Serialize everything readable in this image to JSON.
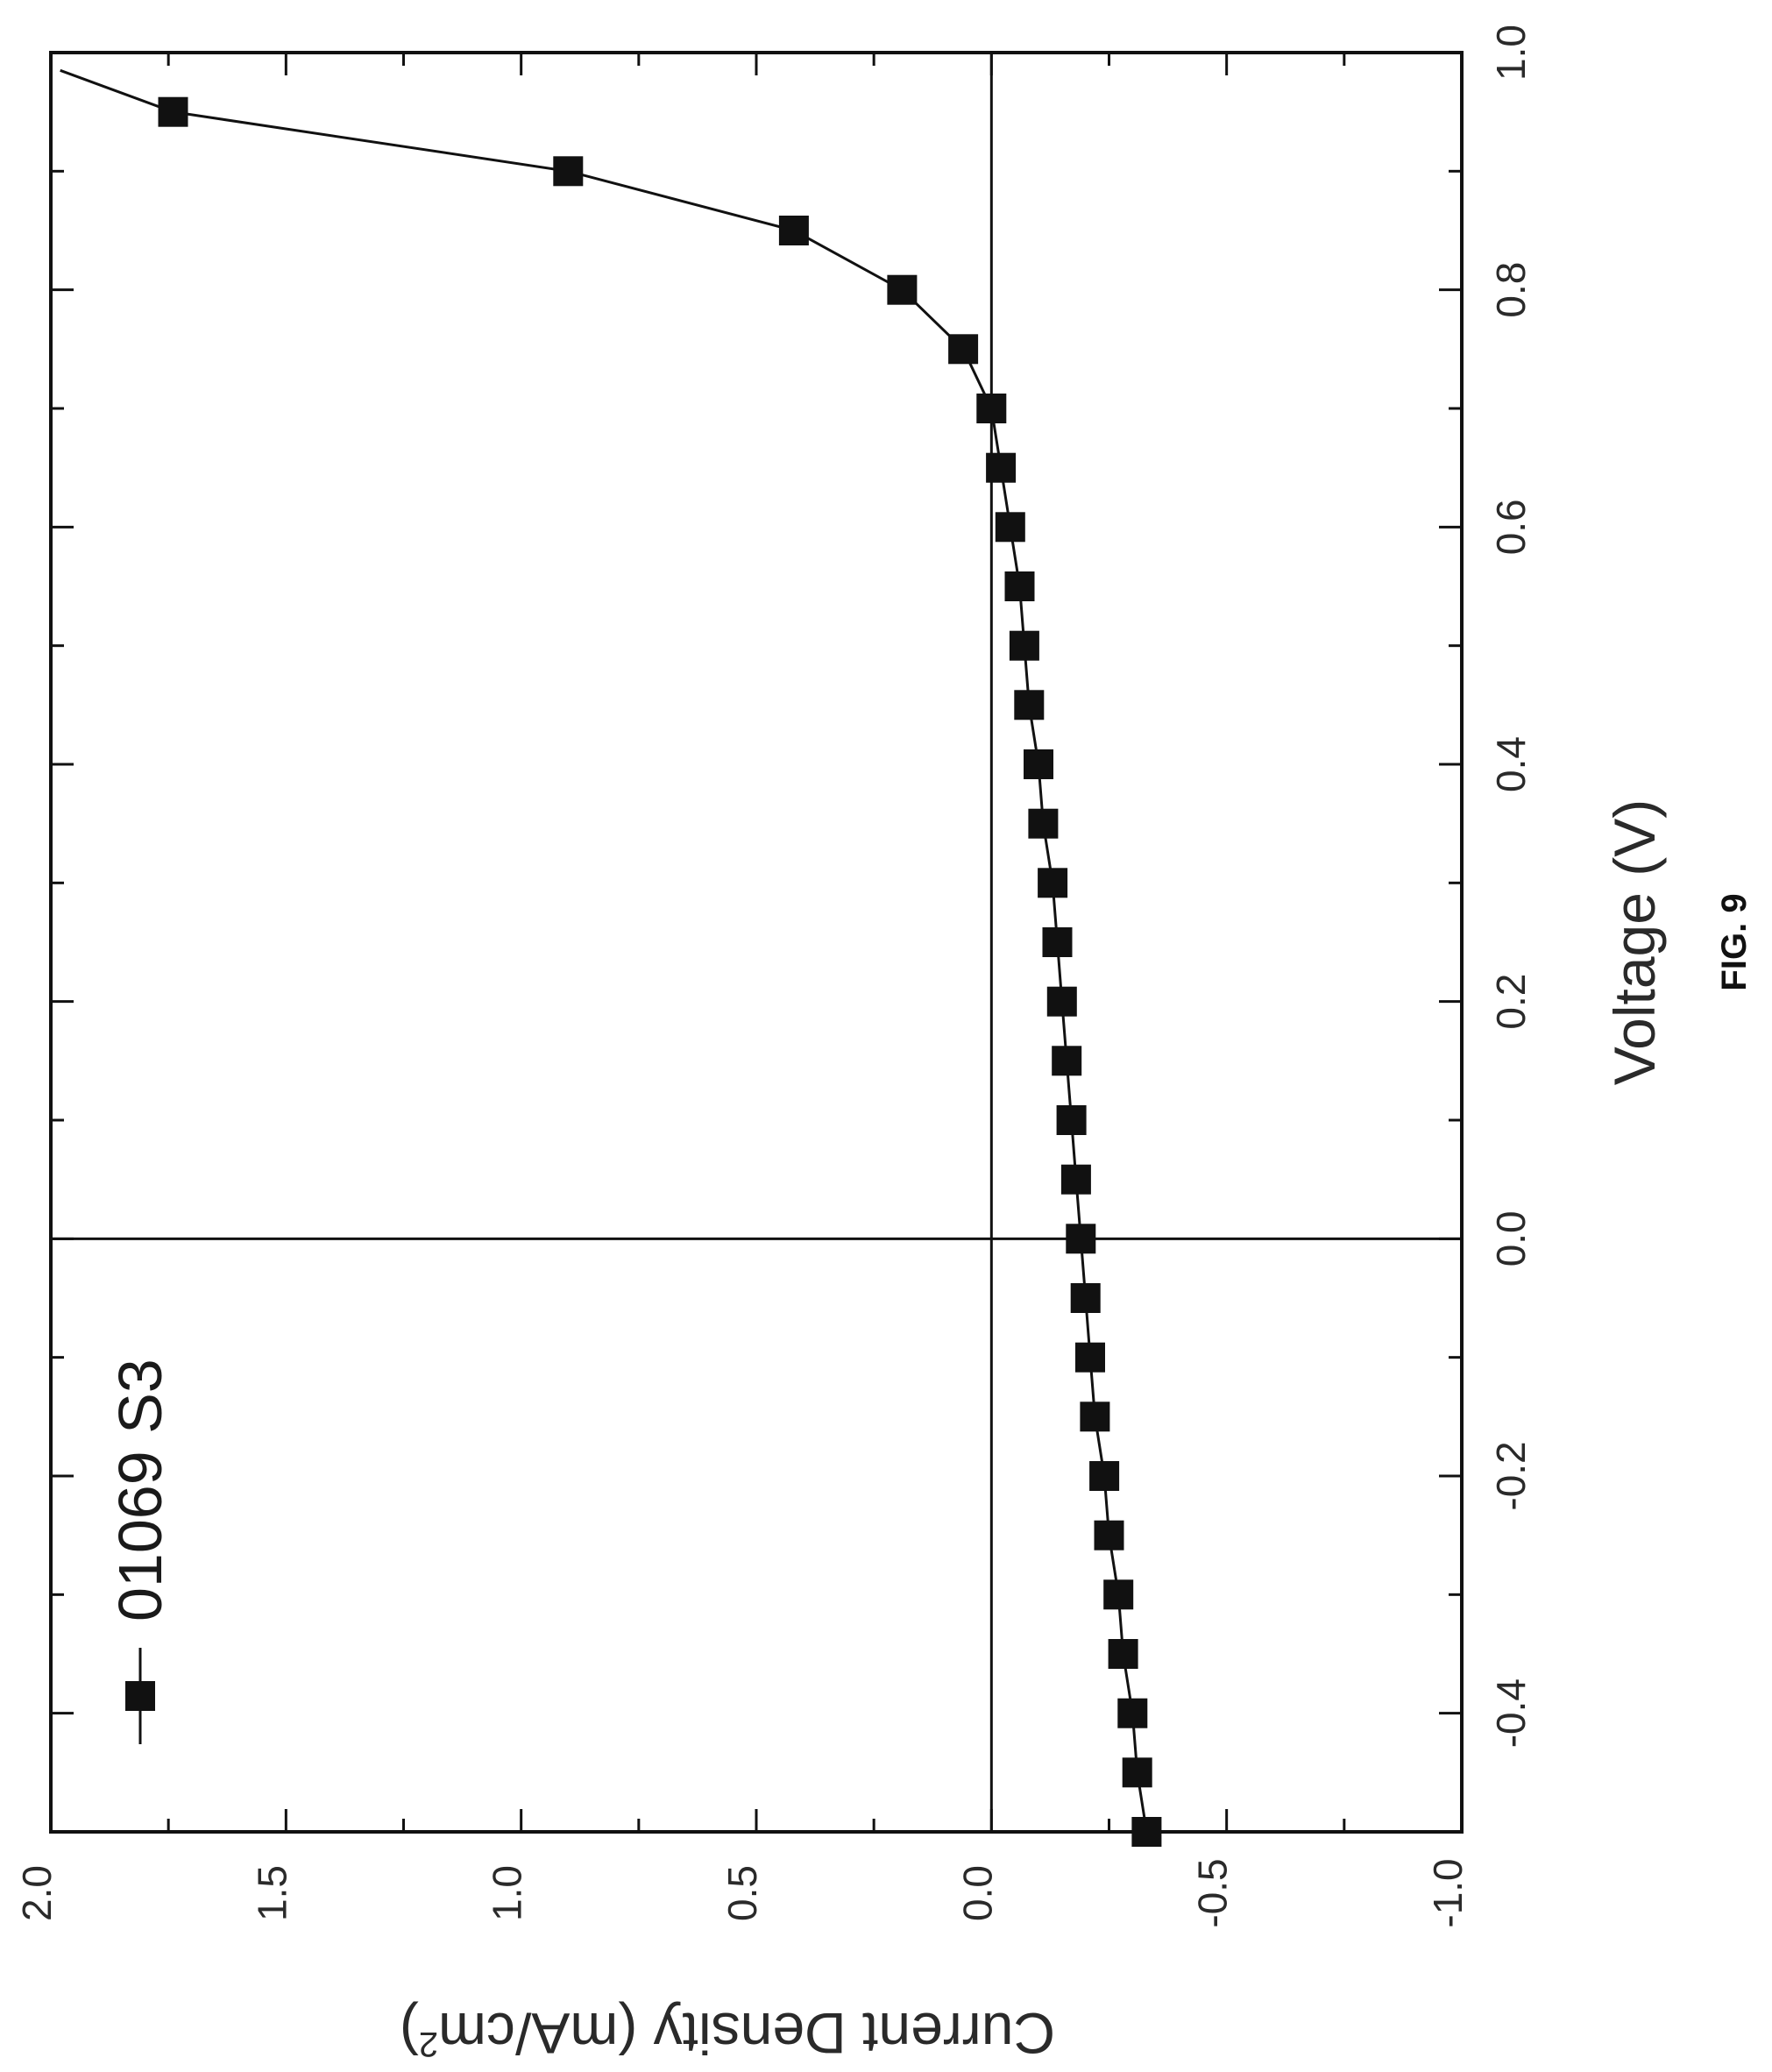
{
  "figure": {
    "caption": "FIG. 9"
  },
  "chart_data": {
    "type": "line",
    "orientation": "rotated-90-clockwise",
    "xlabel": "Voltage (V)",
    "ylabel": "Current Density (mA/cm²)",
    "xlim": [
      -0.5,
      1.0
    ],
    "ylim": [
      -1.0,
      2.0
    ],
    "x_ticks": [
      "-0.4",
      "-0.2",
      "0.0",
      "0.2",
      "0.4",
      "0.6",
      "0.8",
      "1.0"
    ],
    "y_ticks": [
      "-1.0",
      "-0.5",
      "0.0",
      "0.5",
      "1.0",
      "1.5",
      "2.0"
    ],
    "reference_lines": {
      "x": 0,
      "y": 0
    },
    "grid": false,
    "legend_position": "top-left",
    "line_color": "#111111",
    "marker": "square",
    "series": [
      {
        "name": "01069 S3",
        "x": [
          -0.5,
          -0.45,
          -0.4,
          -0.35,
          -0.3,
          -0.25,
          -0.2,
          -0.15,
          -0.1,
          -0.05,
          0.0,
          0.05,
          0.1,
          0.15,
          0.2,
          0.25,
          0.3,
          0.35,
          0.4,
          0.45,
          0.5,
          0.55,
          0.6,
          0.65,
          0.7,
          0.75,
          0.8,
          0.85,
          0.9,
          0.95
        ],
        "y": [
          -0.33,
          -0.31,
          -0.3,
          -0.28,
          -0.27,
          -0.25,
          -0.24,
          -0.22,
          -0.21,
          -0.2,
          -0.19,
          -0.18,
          -0.17,
          -0.16,
          -0.15,
          -0.14,
          -0.13,
          -0.11,
          -0.1,
          -0.08,
          -0.07,
          -0.06,
          -0.04,
          -0.02,
          0.0,
          0.06,
          0.19,
          0.42,
          0.9,
          1.74
        ]
      }
    ]
  }
}
